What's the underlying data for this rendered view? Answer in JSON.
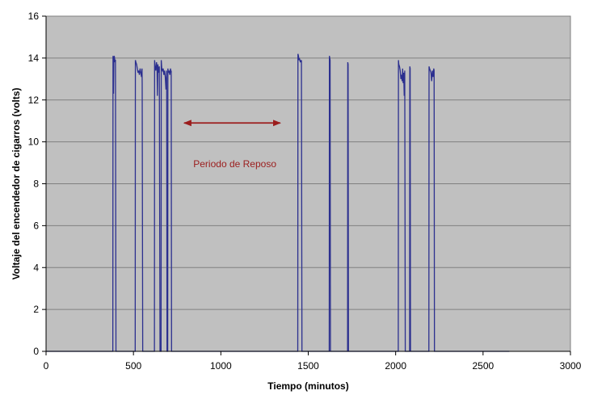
{
  "chart_data": {
    "type": "line",
    "title": "",
    "xlabel": "Tiempo (minutos)",
    "ylabel": "Voltaje del encendedor de cigarros (volts)",
    "xlim": [
      0,
      3000
    ],
    "ylim": [
      0,
      16
    ],
    "x_ticks": [
      0,
      500,
      1000,
      1500,
      2000,
      2500,
      3000
    ],
    "y_ticks": [
      0,
      2,
      4,
      6,
      8,
      10,
      12,
      14,
      16
    ],
    "grid": {
      "horizontal": true,
      "vertical": false
    },
    "legend": "none",
    "colors": {
      "plot_background": "#c0c0c0",
      "series": "#2b2f8f",
      "annotation": "#9b1c1c",
      "gridline": "#808080"
    },
    "series": [
      {
        "x": [
          0,
          382,
          383,
          385,
          386,
          388,
          390,
          392,
          394,
          396,
          397,
          400,
          510,
          511,
          514,
          518,
          522,
          526,
          530,
          534,
          538,
          542,
          546,
          549,
          550,
          553,
          620,
          621,
          624,
          628,
          632,
          635,
          637,
          640,
          643,
          646,
          648,
          652,
          658,
          659,
          662,
          666,
          670,
          674,
          678,
          682,
          686,
          690,
          692,
          696,
          697,
          700,
          704,
          708,
          712,
          715,
          716,
          718,
          1440,
          1441,
          1444,
          1447,
          1449,
          1452,
          1455,
          1458,
          1460,
          1461,
          1464,
          1620,
          1621,
          1623,
          1625,
          1627,
          1725,
          1726,
          1728,
          1730,
          2015,
          2016,
          2018,
          2022,
          2026,
          2030,
          2034,
          2037,
          2040,
          2043,
          2046,
          2049,
          2052,
          2055,
          2080,
          2081,
          2083,
          2085,
          2190,
          2191,
          2194,
          2198,
          2202,
          2206,
          2210,
          2214,
          2218,
          2220,
          2222,
          2650
        ],
        "y": [
          0,
          0,
          14.1,
          13.2,
          12.3,
          14.0,
          14.1,
          14.0,
          13.8,
          13.9,
          13.9,
          0,
          0,
          13.9,
          13.8,
          13.7,
          13.5,
          13.3,
          13.4,
          13.2,
          13.5,
          13.3,
          13.1,
          13.5,
          12.8,
          0,
          0,
          13.9,
          13.6,
          13.4,
          13.8,
          13.5,
          12.2,
          13.7,
          13.3,
          13.5,
          13.6,
          0,
          0,
          13.9,
          13.5,
          13.4,
          13.5,
          13.2,
          13.4,
          13.1,
          12.5,
          13.4,
          0,
          0,
          13.5,
          13.3,
          13.4,
          13.2,
          13.5,
          13.3,
          13.4,
          0,
          0,
          14.2,
          14.1,
          13.9,
          14.0,
          13.9,
          13.8,
          13.9,
          13.8,
          13.9,
          0,
          0,
          14.1,
          14.0,
          13.9,
          0,
          0,
          13.8,
          13.7,
          0,
          0,
          13.9,
          13.7,
          13.6,
          13.4,
          13.0,
          13.2,
          12.9,
          13.5,
          12.8,
          13.3,
          12.2,
          13.4,
          0,
          0,
          13.6,
          13.5,
          0,
          0,
          13.6,
          13.5,
          13.4,
          13.3,
          12.9,
          13.4,
          13.1,
          13.5,
          13.4,
          0,
          0
        ]
      }
    ],
    "annotation": {
      "text": "Periodo de Reposo",
      "arrow_x": [
        790,
        1340
      ],
      "arrow_y": 10.9,
      "text_x": 1080,
      "text_y": 8.8
    }
  }
}
